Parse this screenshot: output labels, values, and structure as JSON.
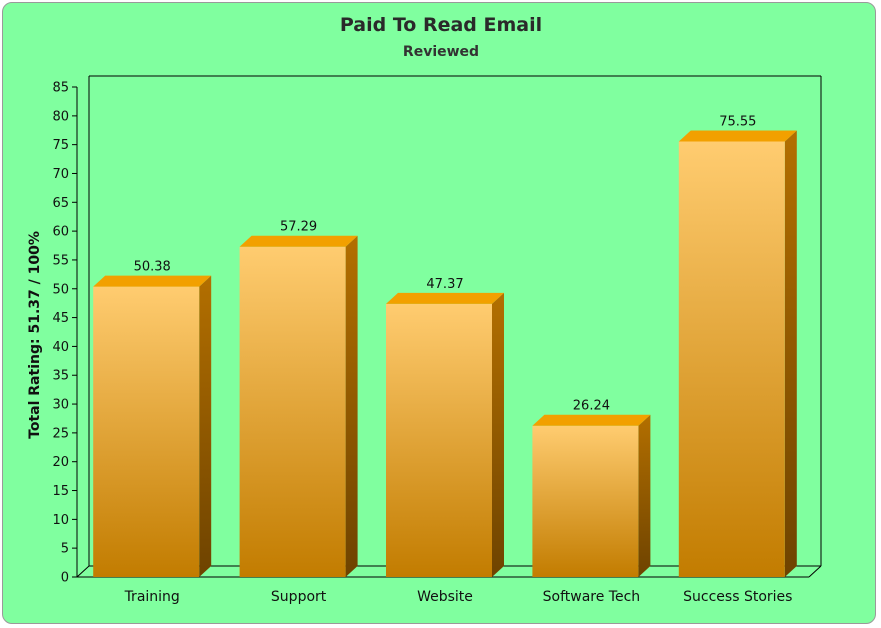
{
  "chart_data": {
    "type": "bar",
    "title": "Paid To Read Email",
    "subtitle": "Reviewed",
    "xlabel": "",
    "ylabel": "Total Rating: 51.37 / 100%",
    "categories": [
      "Training",
      "Support",
      "Website",
      "Software Tech",
      "Success Stories"
    ],
    "values": [
      50.38,
      57.29,
      47.37,
      26.24,
      75.55
    ],
    "value_labels": [
      "50.38",
      "57.29",
      "47.37",
      "26.24",
      "75.55"
    ],
    "ylim": [
      0,
      85
    ],
    "yticks": [
      0,
      5,
      10,
      15,
      20,
      25,
      30,
      35,
      40,
      45,
      50,
      55,
      60,
      65,
      70,
      75,
      80,
      85
    ],
    "grid": false,
    "style": "3d-bar",
    "colors": {
      "background": "#80ff9f",
      "bar_top_light": "#ffcc70",
      "bar_bottom": "#c27c00",
      "bar_cap": "#f2a000",
      "bar_side": "#8a5400"
    }
  }
}
